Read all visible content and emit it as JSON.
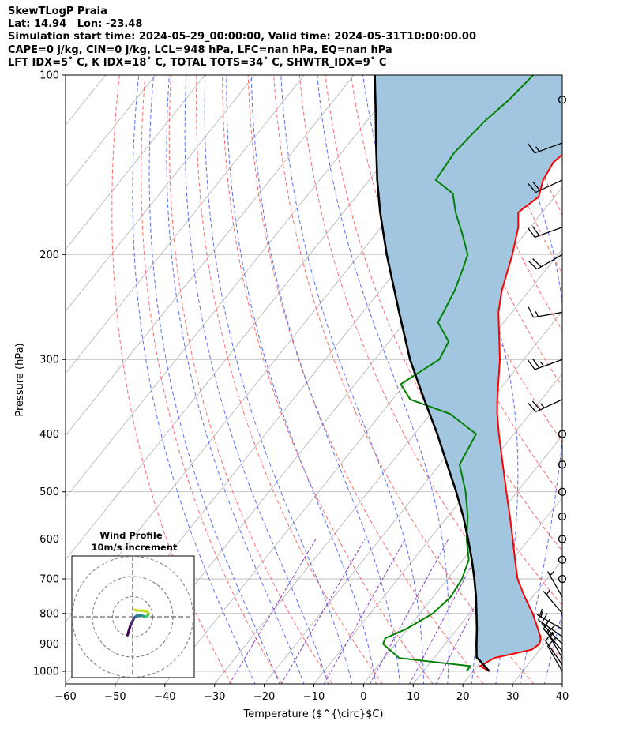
{
  "header": {
    "line1": "SkewTLogP Praia",
    "line2": "Lat: 14.94   Lon: -23.48",
    "line3": "Simulation start time: 2024-05-29_00:00:00, Valid time: 2024-05-31T10:00:00.00",
    "line4": "CAPE=0 j/kg, CIN=0 j/kg, LCL=948 hPa, LFC=nan hPa, EQ=nan hPa",
    "line5": "LFT IDX=5˚ C, K IDX=18˚ C, TOTAL TOTS=34˚ C, SHWTR_IDX=9˚ C"
  },
  "colors": {
    "temperature": "#ff0000",
    "dewpoint": "#008000",
    "parcel": "#000000",
    "shade": "#a3c6e0",
    "dry_adiabat": "#ff6b6b",
    "moist_adiabat": "#5a6ff0",
    "mixing_ratio": "#8a3fc4",
    "isotherm": "#b0b0b0"
  },
  "chart_data": {
    "type": "line",
    "title": "",
    "xlabel": "Temperature ($^{\\circ}$C)",
    "ylabel": "Pressure (hPa)",
    "x_ticks": [
      "−60",
      "−50",
      "−40",
      "−30",
      "−20",
      "−10",
      "0",
      "10",
      "20",
      "30",
      "40"
    ],
    "x_tick_values": [
      -60,
      -50,
      -40,
      -30,
      -20,
      -10,
      0,
      10,
      20,
      30,
      40
    ],
    "y_ticks": [
      "100",
      "200",
      "300",
      "400",
      "500",
      "600",
      "700",
      "800",
      "900",
      "1000"
    ],
    "y_tick_values": [
      100,
      200,
      300,
      400,
      500,
      600,
      700,
      800,
      900,
      1000
    ],
    "xlim": [
      -60,
      40
    ],
    "ylim": [
      1050,
      100
    ],
    "y_scale": "log",
    "grid": true,
    "series": [
      {
        "key": "temperature",
        "points": [
          [
            1000,
            23.3
          ],
          [
            980,
            20.6
          ],
          [
            950,
            22.1
          ],
          [
            920,
            28.3
          ],
          [
            900,
            29.0
          ],
          [
            880,
            28.3
          ],
          [
            850,
            26.3
          ],
          [
            800,
            22.7
          ],
          [
            750,
            18.4
          ],
          [
            700,
            14.1
          ],
          [
            650,
            10.5
          ],
          [
            600,
            6.7
          ],
          [
            550,
            2.5
          ],
          [
            500,
            -2.2
          ],
          [
            450,
            -7.3
          ],
          [
            400,
            -13.0
          ],
          [
            370,
            -16.6
          ],
          [
            350,
            -18.9
          ],
          [
            300,
            -24.8
          ],
          [
            250,
            -32.7
          ],
          [
            230,
            -35.5
          ],
          [
            200,
            -39.2
          ],
          [
            180,
            -42.4
          ],
          [
            170,
            -44.8
          ],
          [
            160,
            -43.2
          ],
          [
            150,
            -45.0
          ],
          [
            140,
            -45.8
          ],
          [
            130,
            -44.3
          ],
          [
            120,
            -48.7
          ],
          [
            110,
            -52.9
          ],
          [
            100,
            -57.7
          ]
        ]
      },
      {
        "key": "dewpoint",
        "points": [
          [
            1000,
            18.7
          ],
          [
            980,
            18.6
          ],
          [
            950,
            3.0
          ],
          [
            900,
            -2.5
          ],
          [
            880,
            -3.0
          ],
          [
            850,
            -0.3
          ],
          [
            800,
            2.6
          ],
          [
            750,
            3.5
          ],
          [
            700,
            2.9
          ],
          [
            650,
            1.2
          ],
          [
            600,
            -2.6
          ],
          [
            550,
            -6.0
          ],
          [
            500,
            -10.4
          ],
          [
            450,
            -16.0
          ],
          [
            400,
            -17.6
          ],
          [
            370,
            -26.1
          ],
          [
            350,
            -36.4
          ],
          [
            330,
            -40.8
          ],
          [
            300,
            -37.0
          ],
          [
            280,
            -38.0
          ],
          [
            260,
            -43.2
          ],
          [
            230,
            -45.0
          ],
          [
            210,
            -47.0
          ],
          [
            200,
            -48.2
          ],
          [
            185,
            -52.5
          ],
          [
            170,
            -57.4
          ],
          [
            158,
            -61.0
          ],
          [
            150,
            -66.6
          ],
          [
            135,
            -67.3
          ],
          [
            120,
            -66.3
          ],
          [
            110,
            -64.8
          ],
          [
            100,
            -63.9
          ]
        ]
      },
      {
        "key": "parcel",
        "points": [
          [
            1000,
            23.3
          ],
          [
            980,
            21.5
          ],
          [
            960,
            19.7
          ],
          [
            948,
            18.5
          ],
          [
            900,
            16.3
          ],
          [
            850,
            14.0
          ],
          [
            800,
            11.4
          ],
          [
            750,
            8.6
          ],
          [
            700,
            5.4
          ],
          [
            650,
            1.8
          ],
          [
            600,
            -2.3
          ],
          [
            550,
            -6.9
          ],
          [
            500,
            -12.3
          ],
          [
            450,
            -18.5
          ],
          [
            400,
            -25.4
          ],
          [
            350,
            -33.6
          ],
          [
            300,
            -42.9
          ],
          [
            250,
            -52.7
          ],
          [
            200,
            -64.5
          ],
          [
            170,
            -72.6
          ],
          [
            150,
            -78.4
          ],
          [
            130,
            -84.6
          ],
          [
            115,
            -89.8
          ],
          [
            100,
            -95.8
          ]
        ]
      }
    ],
    "wind_barbs": {
      "levels": [
        1000,
        975,
        950,
        925,
        900,
        875,
        850,
        800,
        750,
        700,
        650,
        600,
        550,
        500,
        450,
        400,
        350,
        300,
        250,
        200,
        180,
        150,
        130,
        110
      ],
      "speed_kt": [
        10,
        12,
        16,
        17,
        13,
        9,
        7,
        6,
        4,
        0,
        0,
        0,
        0,
        0,
        0,
        0,
        25,
        25,
        15,
        18,
        20,
        20,
        15,
        0
      ],
      "direction_deg": [
        330,
        325,
        330,
        320,
        315,
        305,
        300,
        320,
        330,
        0,
        0,
        0,
        0,
        0,
        0,
        0,
        245,
        250,
        260,
        240,
        250,
        245,
        250,
        0
      ]
    },
    "hodograph": {
      "title": "Wind Profile",
      "subtitle": "10m/s increment",
      "rings_ms": [
        10,
        20,
        30
      ],
      "u_ms": [
        -2.5,
        -1.8,
        -1.0,
        0.0,
        0.8,
        2.0,
        3.5,
        5.0,
        6.5,
        7.5,
        8.0,
        7.2,
        5.0,
        2.0,
        1.0
      ],
      "v_ms": [
        -9.0,
        -6.5,
        -4.0,
        -2.0,
        -0.5,
        0.5,
        0.8,
        0.4,
        0.0,
        0.6,
        1.5,
        2.5,
        3.0,
        3.2,
        3.5
      ]
    }
  }
}
